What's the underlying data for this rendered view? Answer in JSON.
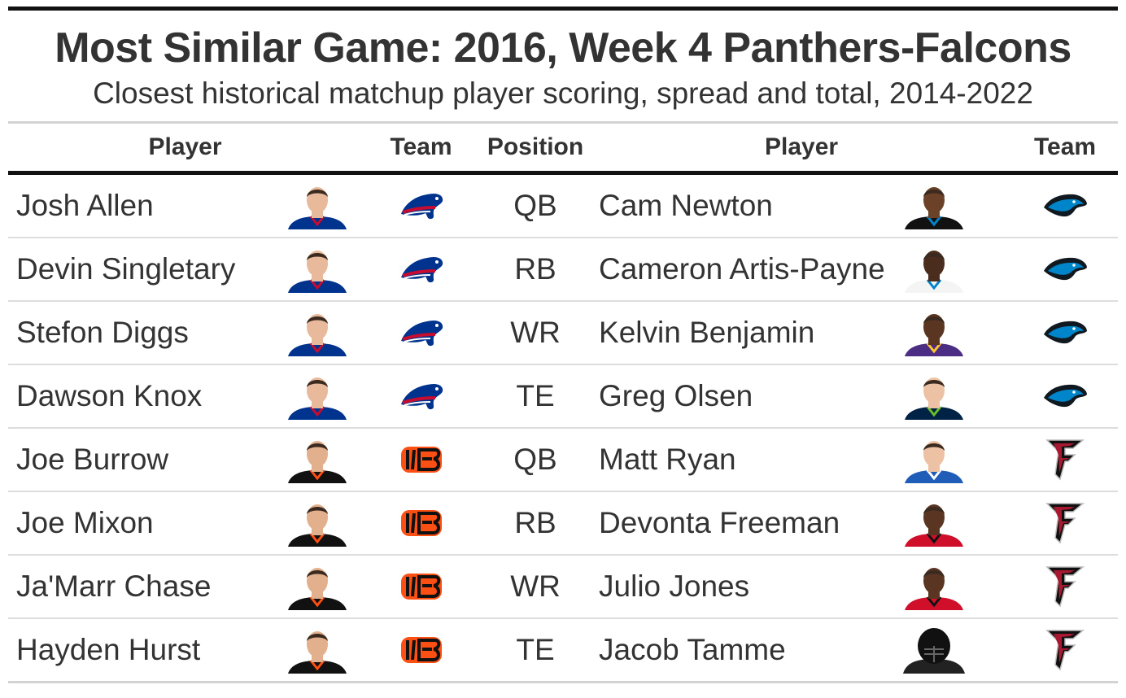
{
  "title": "Most Similar Game: 2016, Week 4 Panthers-Falcons",
  "subtitle": "Closest historical matchup player scoring, spread and total, 2014-2022",
  "columns": {
    "player_left": "Player",
    "team_left": "Team",
    "position": "Position",
    "player_right": "Player",
    "team_right": "Team"
  },
  "colors": {
    "bills_blue": "#00338D",
    "bills_red": "#C60C30",
    "bengals_orange": "#FB4F14",
    "panthers_blue": "#0085CA",
    "falcons_red": "#A71930",
    "seahawks_navy": "#002244",
    "colts_blue": "#1F5DB8"
  },
  "rows": [
    {
      "left": {
        "name": "Josh Allen",
        "headshot": "bills-headshot-icon",
        "team_logo": "bills-logo-icon"
      },
      "position": "QB",
      "right": {
        "name": "Cam Newton",
        "headshot": "panthers-headshot-icon",
        "team_logo": "panthers-logo-icon"
      }
    },
    {
      "left": {
        "name": "Devin Singletary",
        "headshot": "bills-headshot-icon",
        "team_logo": "bills-logo-icon"
      },
      "position": "RB",
      "right": {
        "name": "Cameron Artis-Payne",
        "headshot": "white-jersey-headshot-icon",
        "team_logo": "panthers-logo-icon"
      }
    },
    {
      "left": {
        "name": "Stefon Diggs",
        "headshot": "bills-headshot-icon",
        "team_logo": "bills-logo-icon"
      },
      "position": "WR",
      "right": {
        "name": "Kelvin Benjamin",
        "headshot": "purple-jersey-headshot-icon",
        "team_logo": "panthers-logo-icon"
      }
    },
    {
      "left": {
        "name": "Dawson Knox",
        "headshot": "bills-headshot-icon",
        "team_logo": "bills-logo-icon"
      },
      "position": "TE",
      "right": {
        "name": "Greg Olsen",
        "headshot": "seahawks-headshot-icon",
        "team_logo": "panthers-logo-icon"
      }
    },
    {
      "left": {
        "name": "Joe Burrow",
        "headshot": "bengals-headshot-icon",
        "team_logo": "bengals-logo-icon"
      },
      "position": "QB",
      "right": {
        "name": "Matt Ryan",
        "headshot": "colts-headshot-icon",
        "team_logo": "falcons-logo-icon"
      }
    },
    {
      "left": {
        "name": "Joe Mixon",
        "headshot": "bengals-headshot-icon",
        "team_logo": "bengals-logo-icon"
      },
      "position": "RB",
      "right": {
        "name": "Devonta Freeman",
        "headshot": "red-jersey-headshot-icon",
        "team_logo": "falcons-logo-icon"
      }
    },
    {
      "left": {
        "name": "Ja'Marr Chase",
        "headshot": "bengals-headshot-icon",
        "team_logo": "bengals-logo-icon"
      },
      "position": "WR",
      "right": {
        "name": "Julio Jones",
        "headshot": "red-jersey-headshot-icon",
        "team_logo": "falcons-logo-icon"
      }
    },
    {
      "left": {
        "name": "Hayden Hurst",
        "headshot": "bengals-headshot-icon",
        "team_logo": "bengals-logo-icon"
      },
      "position": "TE",
      "right": {
        "name": "Jacob Tamme",
        "headshot": "helmet-silhouette-icon",
        "team_logo": "falcons-logo-icon"
      }
    }
  ]
}
